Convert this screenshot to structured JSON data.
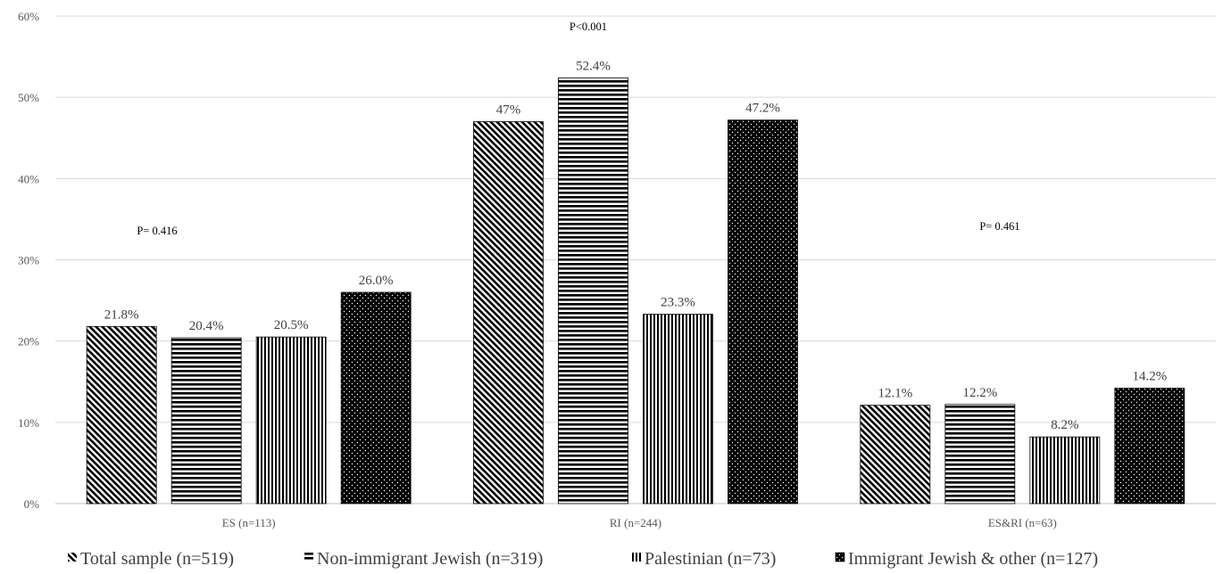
{
  "chart_data": {
    "type": "bar",
    "categories": [
      "ES (n=113)",
      "RI (n=244)",
      "ES&RI (n=63)"
    ],
    "series": [
      {
        "name": "Total sample (n=519)",
        "pattern": "diagonal",
        "values": [
          21.8,
          47.0,
          12.1
        ],
        "labels": [
          "21.8%",
          "47%",
          "12.1%"
        ]
      },
      {
        "name": "Non-immigrant Jewish (n=319)",
        "pattern": "horizontal",
        "values": [
          20.4,
          52.4,
          12.2
        ],
        "labels": [
          "20.4%",
          "52.4%",
          "12.2%"
        ]
      },
      {
        "name": "Palestinian (n=73)",
        "pattern": "vertical",
        "values": [
          20.5,
          23.3,
          8.2
        ],
        "labels": [
          "20.5%",
          "23.3%",
          "8.2%"
        ]
      },
      {
        "name": "Immigrant Jewish & other (n=127)",
        "pattern": "dotted",
        "values": [
          26.0,
          47.2,
          14.2
        ],
        "labels": [
          "26.0%",
          "47.2%",
          "14.2%"
        ]
      }
    ],
    "y_ticks": [
      "0%",
      "10%",
      "20%",
      "30%",
      "40%",
      "50%",
      "60%"
    ],
    "ylim": [
      0,
      60
    ],
    "grid": true,
    "legend_position": "bottom",
    "annotations": [
      "P= 0.416",
      "P<0.001",
      "P= 0.461"
    ],
    "colors": {
      "bar": "#000000",
      "grid": "#d9d9d9",
      "axis_text": "#595959"
    }
  }
}
